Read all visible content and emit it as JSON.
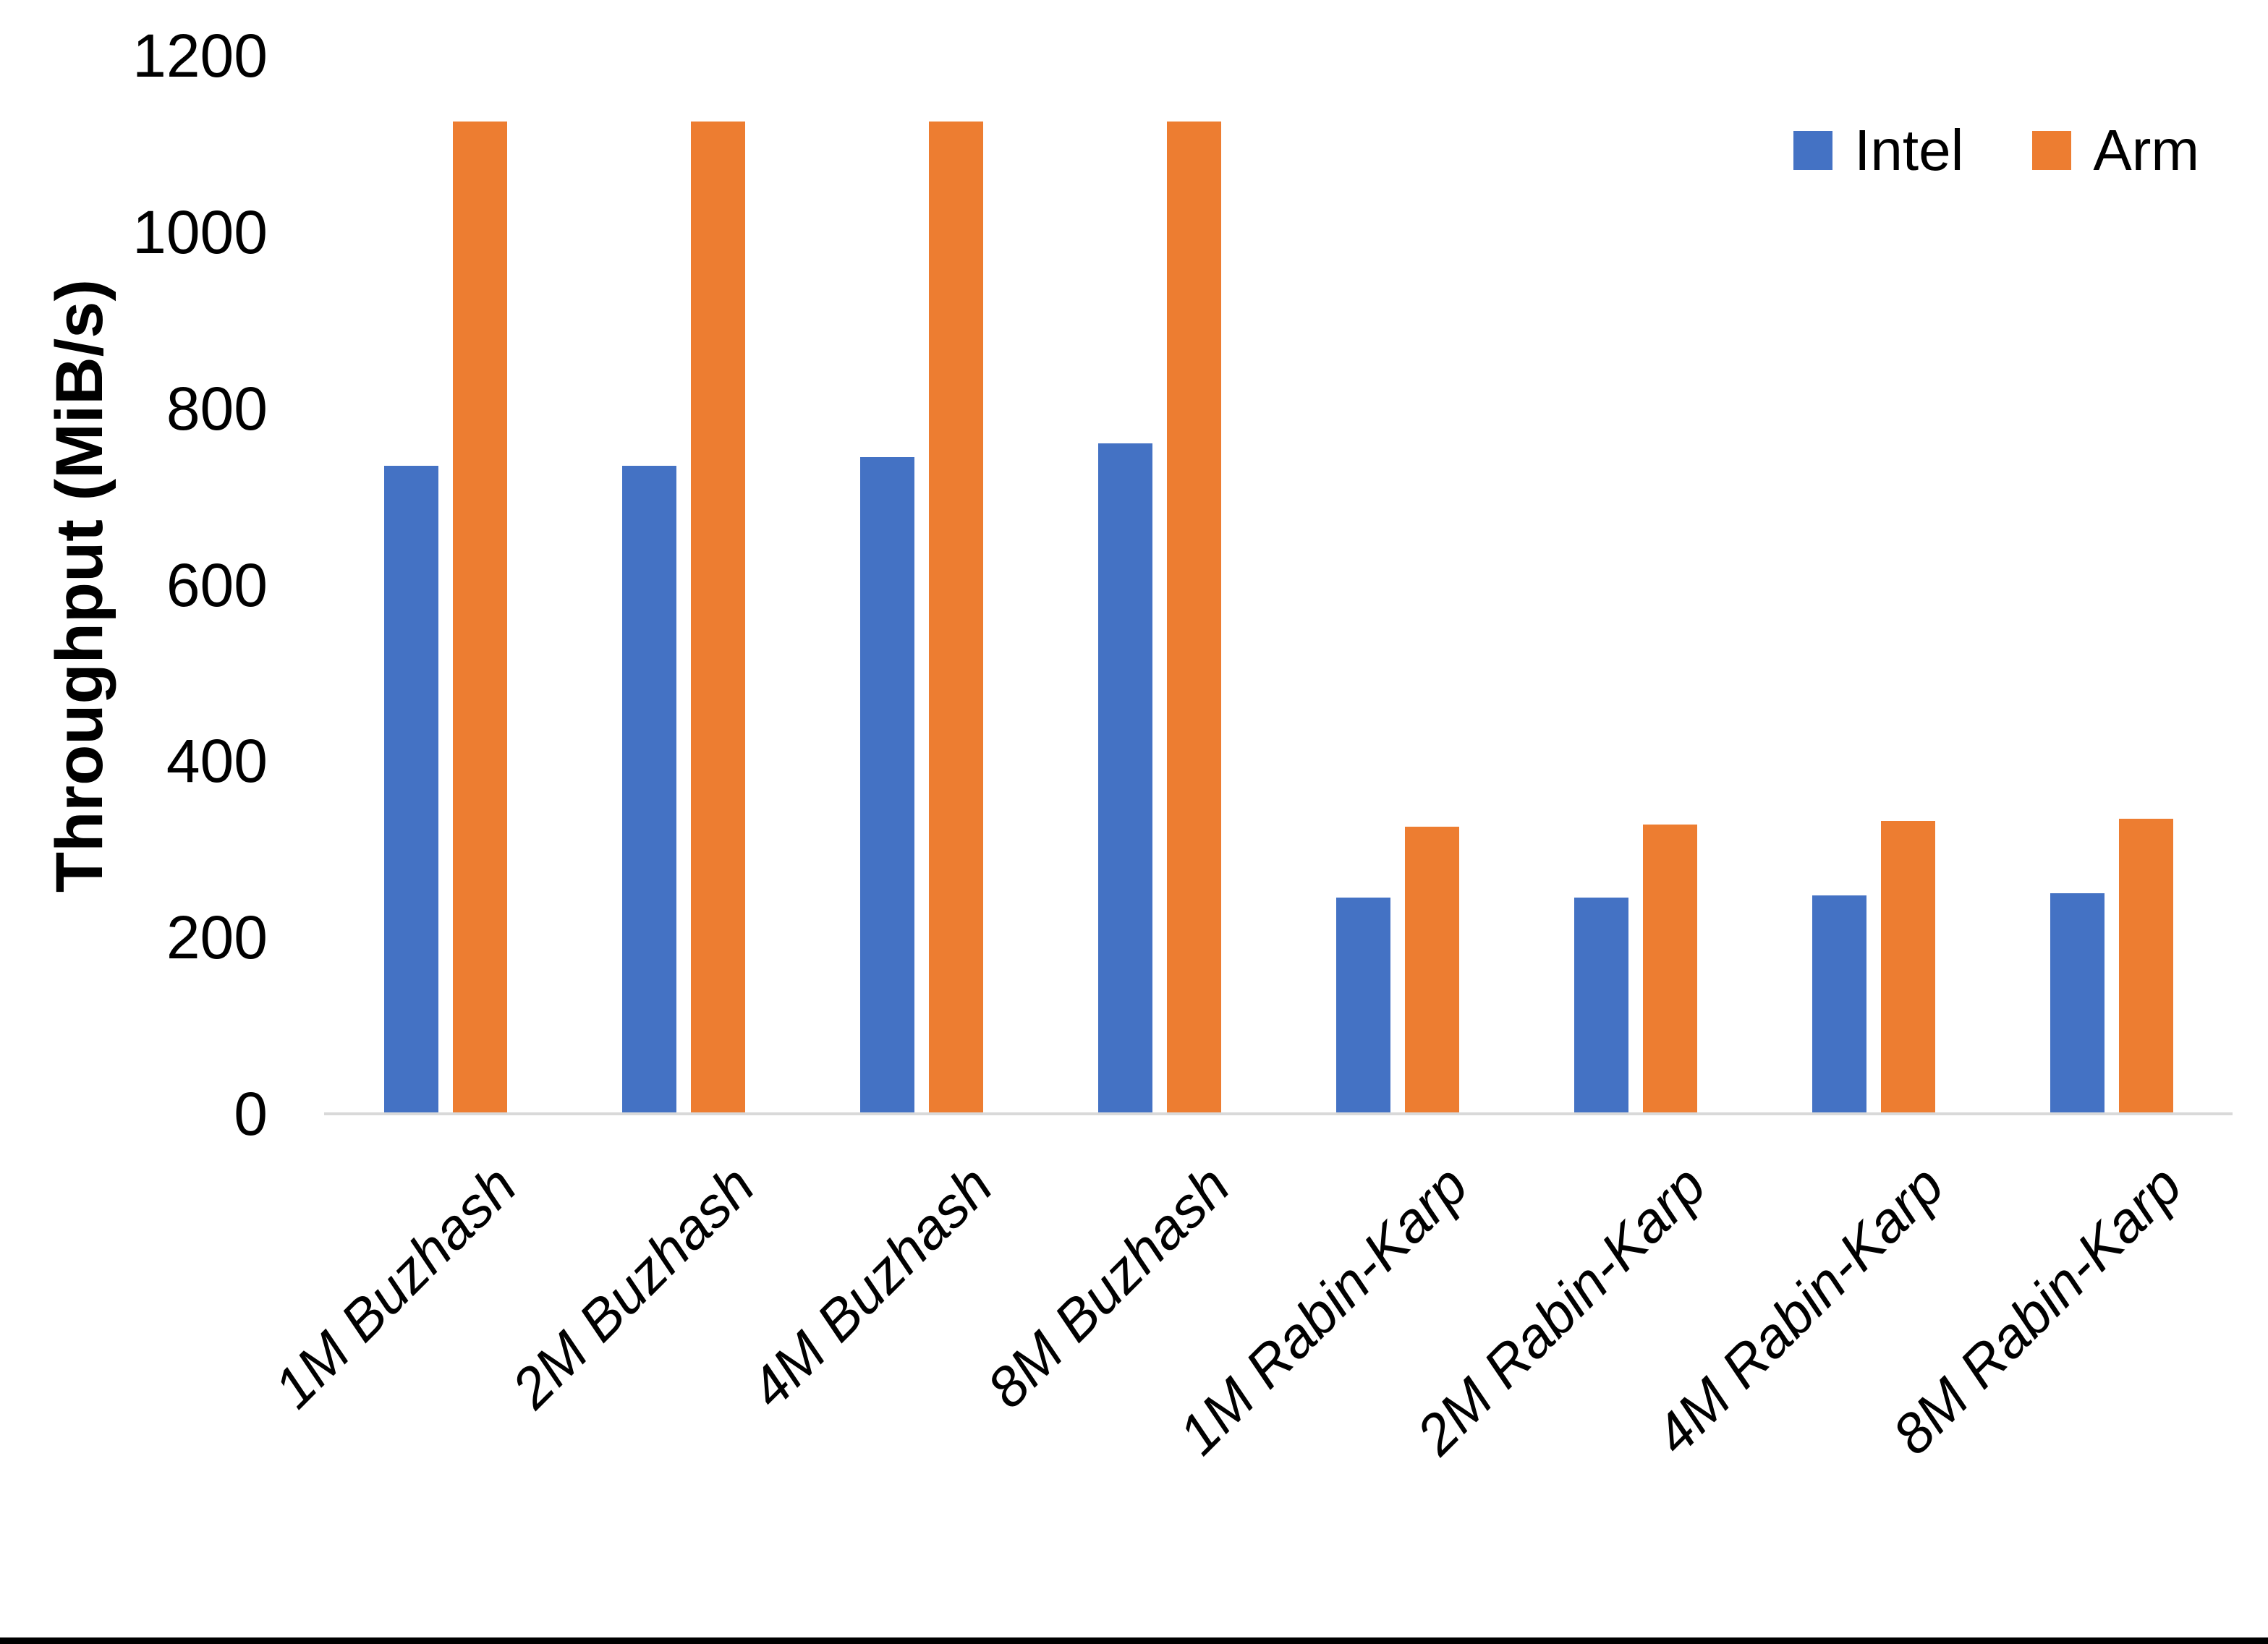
{
  "chart_data": {
    "type": "bar",
    "title": "",
    "categories": [
      "1M Buzhash",
      "2M Buzhash",
      "4M Buzhash",
      "8M Buzhash",
      "1M Rabin-Karp",
      "2M Rabin-Karp",
      "4M Rabin-Karp",
      "8M Rabin-Karp"
    ],
    "series": [
      {
        "name": "Intel",
        "color": "#4472C4",
        "values": [
          735,
          735,
          745,
          760,
          245,
          245,
          248,
          250
        ]
      },
      {
        "name": "Arm",
        "color": "#ED7D31",
        "values": [
          1125,
          1125,
          1125,
          1125,
          326,
          328,
          332,
          335
        ]
      }
    ],
    "xlabel": "",
    "ylabel": "Throughput (MiB/s)",
    "ylim": [
      0,
      1200
    ],
    "y_ticks": [
      "0",
      "200",
      "400",
      "600",
      "800",
      "1000",
      "1200"
    ],
    "grid": false,
    "legend_position": "top-right",
    "axis_line_color": "#d9d9d9"
  }
}
